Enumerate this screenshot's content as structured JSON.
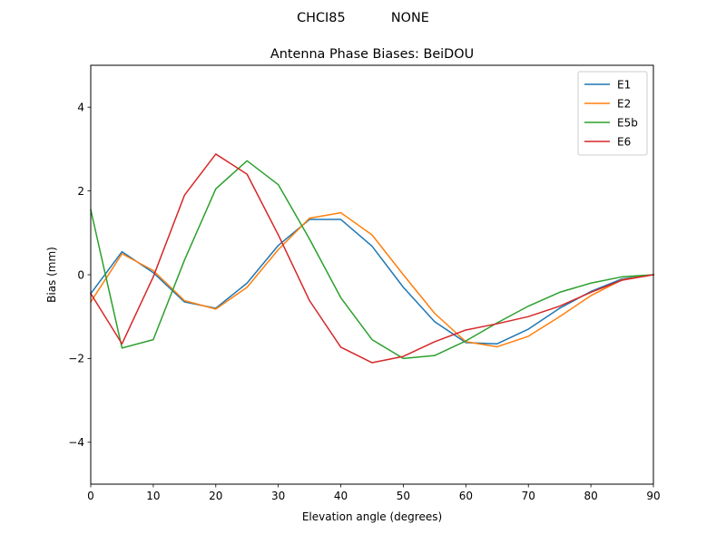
{
  "suptitle": "CHCI85           NONE",
  "chart_data": {
    "type": "line",
    "title": "Antenna Phase Biases: BeiDOU",
    "xlabel": "Elevation angle (degrees)",
    "ylabel": "Bias (mm)",
    "xlim": [
      0,
      90
    ],
    "ylim": [
      -5,
      5
    ],
    "xticks": [
      0,
      10,
      20,
      30,
      40,
      50,
      60,
      70,
      80,
      90
    ],
    "yticks": [
      -4,
      -2,
      0,
      2,
      4
    ],
    "x": [
      0,
      5,
      10,
      15,
      20,
      25,
      30,
      35,
      40,
      45,
      50,
      55,
      60,
      65,
      70,
      75,
      80,
      85,
      90
    ],
    "grid": false,
    "legend": "top-right",
    "series": [
      {
        "name": "E1",
        "color": "#1f77b4",
        "values": [
          -0.45,
          0.55,
          0.05,
          -0.65,
          -0.8,
          -0.2,
          0.7,
          1.32,
          1.32,
          0.68,
          -0.3,
          -1.12,
          -1.62,
          -1.65,
          -1.3,
          -0.8,
          -0.4,
          -0.1,
          0.0
        ]
      },
      {
        "name": "E2",
        "color": "#ff7f0e",
        "values": [
          -0.65,
          0.5,
          0.1,
          -0.62,
          -0.82,
          -0.3,
          0.6,
          1.35,
          1.48,
          0.95,
          0.0,
          -0.92,
          -1.6,
          -1.72,
          -1.47,
          -1.0,
          -0.5,
          -0.12,
          0.0
        ]
      },
      {
        "name": "E5b",
        "color": "#2ca02c",
        "values": [
          1.55,
          -1.75,
          -1.55,
          0.35,
          2.05,
          2.72,
          2.15,
          0.85,
          -0.55,
          -1.55,
          -2.0,
          -1.93,
          -1.58,
          -1.15,
          -0.75,
          -0.42,
          -0.2,
          -0.05,
          0.0
        ]
      },
      {
        "name": "E6",
        "color": "#d62728",
        "values": [
          -0.45,
          -1.65,
          -0.05,
          1.9,
          2.88,
          2.4,
          0.95,
          -0.62,
          -1.73,
          -2.1,
          -1.95,
          -1.6,
          -1.32,
          -1.17,
          -1.0,
          -0.75,
          -0.42,
          -0.13,
          0.0
        ]
      }
    ]
  }
}
